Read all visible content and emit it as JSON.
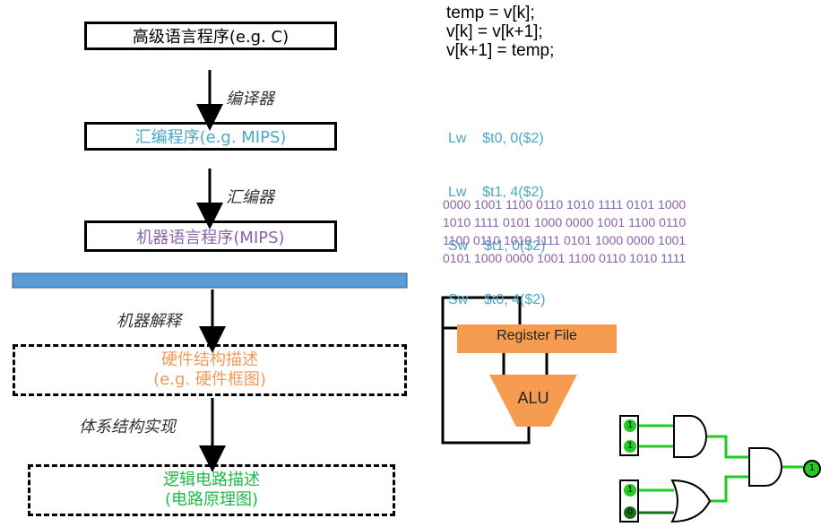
{
  "colors": {
    "asm": "#4aa8c8",
    "machine": "#8a62a8",
    "hw": "#f09a5a",
    "logic": "#1ebb4a",
    "bar": "#5b9bd5",
    "regfile": "#f59c50",
    "alu": "#f59c50",
    "wire_on": "#22cc22"
  },
  "levels": {
    "high_level": "高级语言程序(e.g.  C)",
    "assembly": "汇编程序(e.g.  MIPS)",
    "machine": "机器语言程序(MIPS)",
    "hardware_line1": "硬件结构描述",
    "hardware_line2": "(e.g.  硬件框图)",
    "logic_line1": "逻辑电路描述",
    "logic_line2": "(电路原理图)"
  },
  "transitions": {
    "compiler": "编译器",
    "assembler": "汇编器",
    "interpret": "机器解释",
    "implement": "体系结构实现"
  },
  "c_code": [
    "temp = v[k];",
    "v[k] = v[k+1];",
    "v[k+1] = temp;"
  ],
  "asm_code": [
    "Lw    $t0, 0($2)",
    "Lw    $t1, 4($2)",
    "Sw    $t1, 0($2)",
    "Sw    $t0, 4($2)"
  ],
  "machine_code": [
    "0000 1001 1100 0110 1010 1111 0101 1000",
    "1010 1111 0101 1000 0000 1001 1100 0110",
    "1100 0110 1010 1111 0101 1000 0000 1001",
    "0101 1000 0000 1001 1100 0110 1010 1111"
  ],
  "hardware": {
    "register_file": "Register File",
    "alu": "ALU"
  },
  "logic": {
    "inputs": [
      "1",
      "1",
      "1",
      "0"
    ],
    "output": "1"
  }
}
